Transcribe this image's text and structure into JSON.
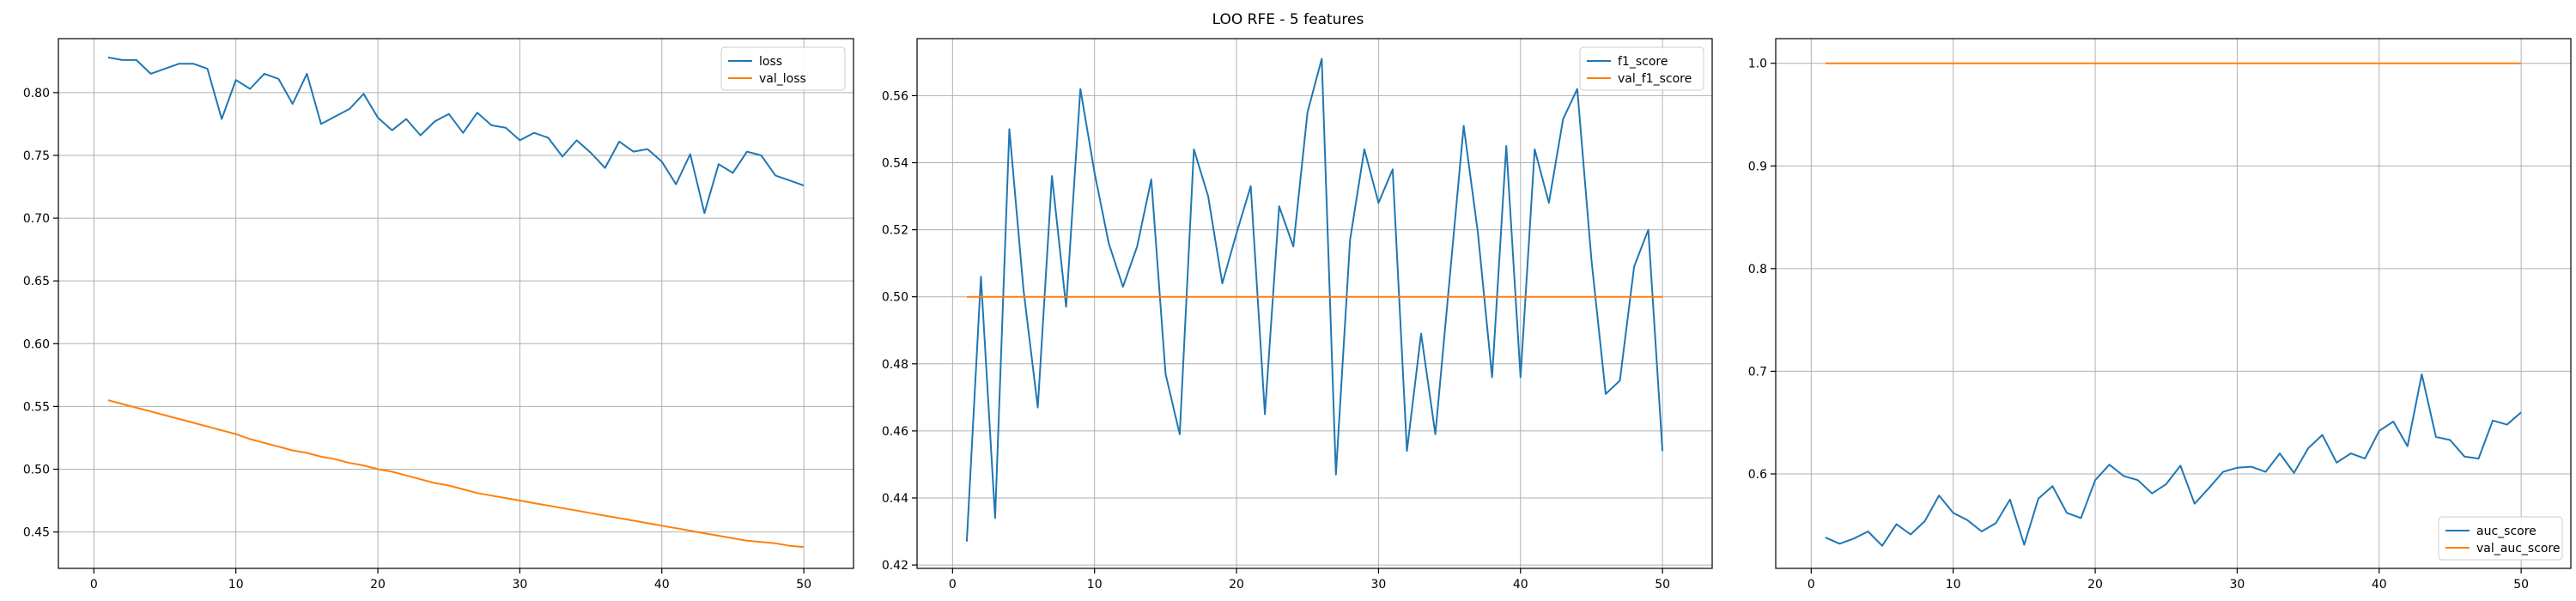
{
  "figure": {
    "suptitle": "LOO RFE - 5 features"
  },
  "colors": {
    "blue": "#1f77b4",
    "orange": "#ff7f0e",
    "grid": "#b0b0b0",
    "axis": "#000000"
  },
  "chart_data": [
    {
      "type": "line",
      "title": "",
      "xlabel": "",
      "ylabel": "",
      "grid": true,
      "legend_loc": "top-right",
      "xlim": [
        -2.5,
        53.5
      ],
      "ylim": [
        0.421,
        0.843
      ],
      "xticks": [
        0,
        10,
        20,
        30,
        40,
        50
      ],
      "yticks": [
        0.45,
        0.5,
        0.55,
        0.6,
        0.65,
        0.7,
        0.75,
        0.8
      ],
      "ytick_labels": [
        "0.45",
        "0.50",
        "0.55",
        "0.60",
        "0.65",
        "0.70",
        "0.75",
        "0.80"
      ],
      "x": [
        1,
        2,
        3,
        4,
        5,
        6,
        7,
        8,
        9,
        10,
        11,
        12,
        13,
        14,
        15,
        16,
        17,
        18,
        19,
        20,
        21,
        22,
        23,
        24,
        25,
        26,
        27,
        28,
        29,
        30,
        31,
        32,
        33,
        34,
        35,
        36,
        37,
        38,
        39,
        40,
        41,
        42,
        43,
        44,
        45,
        46,
        47,
        48,
        49,
        50
      ],
      "series": [
        {
          "name": "loss",
          "color": "#1f77b4",
          "values": [
            0.828,
            0.826,
            0.826,
            0.815,
            0.819,
            0.823,
            0.823,
            0.819,
            0.779,
            0.81,
            0.803,
            0.815,
            0.811,
            0.791,
            0.815,
            0.775,
            0.781,
            0.787,
            0.799,
            0.78,
            0.77,
            0.779,
            0.766,
            0.777,
            0.783,
            0.768,
            0.784,
            0.774,
            0.772,
            0.762,
            0.768,
            0.764,
            0.749,
            0.762,
            0.752,
            0.74,
            0.761,
            0.753,
            0.755,
            0.745,
            0.727,
            0.751,
            0.704,
            0.743,
            0.736,
            0.753,
            0.75,
            0.734,
            0.73,
            0.726
          ]
        },
        {
          "name": "val_loss",
          "color": "#ff7f0e",
          "values": [
            0.555,
            0.552,
            0.549,
            0.546,
            0.543,
            0.54,
            0.537,
            0.534,
            0.531,
            0.528,
            0.524,
            0.521,
            0.518,
            0.515,
            0.513,
            0.51,
            0.508,
            0.505,
            0.503,
            0.5,
            0.498,
            0.495,
            0.492,
            0.489,
            0.487,
            0.484,
            0.481,
            0.479,
            0.477,
            0.475,
            0.473,
            0.471,
            0.469,
            0.467,
            0.465,
            0.463,
            0.461,
            0.459,
            0.457,
            0.455,
            0.453,
            0.451,
            0.449,
            0.447,
            0.445,
            0.443,
            0.442,
            0.441,
            0.439,
            0.438
          ]
        }
      ]
    },
    {
      "type": "line",
      "title": "",
      "xlabel": "",
      "ylabel": "",
      "grid": true,
      "legend_loc": "top-right",
      "xlim": [
        -2.5,
        53.5
      ],
      "ylim": [
        0.419,
        0.577
      ],
      "xticks": [
        0,
        10,
        20,
        30,
        40,
        50
      ],
      "yticks": [
        0.42,
        0.44,
        0.46,
        0.48,
        0.5,
        0.52,
        0.54,
        0.56
      ],
      "ytick_labels": [
        "0.42",
        "0.44",
        "0.46",
        "0.48",
        "0.50",
        "0.52",
        "0.54",
        "0.56"
      ],
      "x": [
        1,
        2,
        3,
        4,
        5,
        6,
        7,
        8,
        9,
        10,
        11,
        12,
        13,
        14,
        15,
        16,
        17,
        18,
        19,
        20,
        21,
        22,
        23,
        24,
        25,
        26,
        27,
        28,
        29,
        30,
        31,
        32,
        33,
        34,
        35,
        36,
        37,
        38,
        39,
        40,
        41,
        42,
        43,
        44,
        45,
        46,
        47,
        48,
        49,
        50
      ],
      "series": [
        {
          "name": "f1_score",
          "color": "#1f77b4",
          "values": [
            0.427,
            0.506,
            0.434,
            0.55,
            0.502,
            0.467,
            0.536,
            0.497,
            0.562,
            0.537,
            0.516,
            0.503,
            0.515,
            0.535,
            0.477,
            0.459,
            0.544,
            0.53,
            0.504,
            0.519,
            0.533,
            0.465,
            0.527,
            0.515,
            0.555,
            0.571,
            0.447,
            0.517,
            0.544,
            0.528,
            0.538,
            0.454,
            0.489,
            0.459,
            0.505,
            0.551,
            0.519,
            0.476,
            0.545,
            0.476,
            0.544,
            0.528,
            0.553,
            0.562,
            0.511,
            0.471,
            0.475,
            0.509,
            0.52,
            0.454
          ]
        },
        {
          "name": "val_f1_score",
          "color": "#ff7f0e",
          "values": [
            0.5,
            0.5,
            0.5,
            0.5,
            0.5,
            0.5,
            0.5,
            0.5,
            0.5,
            0.5,
            0.5,
            0.5,
            0.5,
            0.5,
            0.5,
            0.5,
            0.5,
            0.5,
            0.5,
            0.5,
            0.5,
            0.5,
            0.5,
            0.5,
            0.5,
            0.5,
            0.5,
            0.5,
            0.5,
            0.5,
            0.5,
            0.5,
            0.5,
            0.5,
            0.5,
            0.5,
            0.5,
            0.5,
            0.5,
            0.5,
            0.5,
            0.5,
            0.5,
            0.5,
            0.5,
            0.5,
            0.5,
            0.5,
            0.5,
            0.5
          ]
        }
      ]
    },
    {
      "type": "line",
      "title": "",
      "xlabel": "",
      "ylabel": "",
      "grid": true,
      "legend_loc": "bottom-right",
      "xlim": [
        -2.5,
        53.5
      ],
      "ylim": [
        0.508,
        1.024
      ],
      "xticks": [
        0,
        10,
        20,
        30,
        40,
        50
      ],
      "yticks": [
        0.6,
        0.7,
        0.8,
        0.9,
        1.0
      ],
      "ytick_labels": [
        "0.6",
        "0.7",
        "0.8",
        "0.9",
        "1.0"
      ],
      "x": [
        1,
        2,
        3,
        4,
        5,
        6,
        7,
        8,
        9,
        10,
        11,
        12,
        13,
        14,
        15,
        16,
        17,
        18,
        19,
        20,
        21,
        22,
        23,
        24,
        25,
        26,
        27,
        28,
        29,
        30,
        31,
        32,
        33,
        34,
        35,
        36,
        37,
        38,
        39,
        40,
        41,
        42,
        43,
        44,
        45,
        46,
        47,
        48,
        49,
        50
      ],
      "series": [
        {
          "name": "auc_score",
          "color": "#1f77b4",
          "values": [
            0.538,
            0.532,
            0.537,
            0.544,
            0.53,
            0.551,
            0.541,
            0.554,
            0.579,
            0.562,
            0.555,
            0.544,
            0.552,
            0.575,
            0.531,
            0.576,
            0.588,
            0.562,
            0.557,
            0.594,
            0.609,
            0.598,
            0.594,
            0.581,
            0.59,
            0.608,
            0.571,
            0.586,
            0.602,
            0.606,
            0.607,
            0.602,
            0.62,
            0.601,
            0.625,
            0.638,
            0.611,
            0.62,
            0.615,
            0.642,
            0.651,
            0.627,
            0.697,
            0.636,
            0.633,
            0.617,
            0.615,
            0.652,
            0.648,
            0.66
          ]
        },
        {
          "name": "val_auc_score",
          "color": "#ff7f0e",
          "values": [
            1.0,
            1.0,
            1.0,
            1.0,
            1.0,
            1.0,
            1.0,
            1.0,
            1.0,
            1.0,
            1.0,
            1.0,
            1.0,
            1.0,
            1.0,
            1.0,
            1.0,
            1.0,
            1.0,
            1.0,
            1.0,
            1.0,
            1.0,
            1.0,
            1.0,
            1.0,
            1.0,
            1.0,
            1.0,
            1.0,
            1.0,
            1.0,
            1.0,
            1.0,
            1.0,
            1.0,
            1.0,
            1.0,
            1.0,
            1.0,
            1.0,
            1.0,
            1.0,
            1.0,
            1.0,
            1.0,
            1.0,
            1.0,
            1.0,
            1.0
          ]
        }
      ]
    }
  ]
}
